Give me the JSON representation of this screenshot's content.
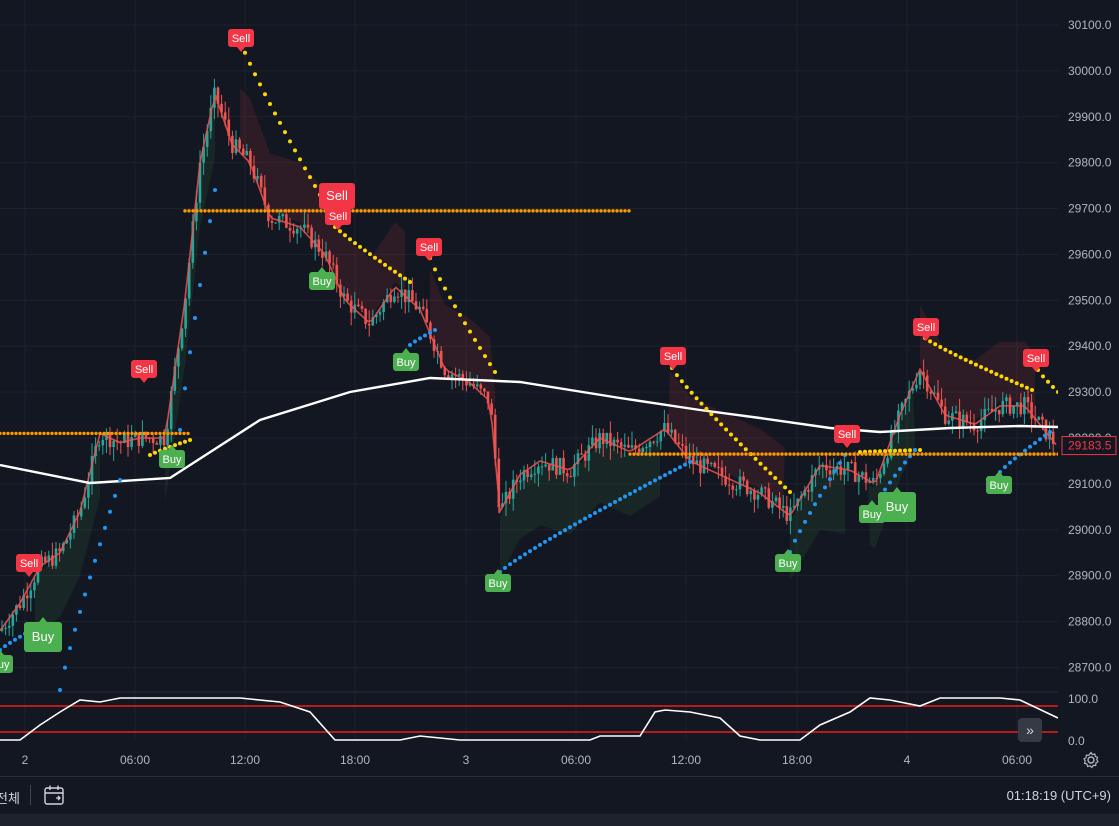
{
  "price_axis": {
    "ticks": [
      "30100.0",
      "30000.0",
      "29900.0",
      "29800.0",
      "29700.0",
      "29600.0",
      "29500.0",
      "29400.0",
      "29300.0",
      "29200.0",
      "29100.0",
      "29000.0",
      "28900.0",
      "28800.0",
      "28700.0"
    ],
    "current_price": "29183.5",
    "current_price_color": "#f23645"
  },
  "oscillator_axis": {
    "ticks": [
      "100.0",
      "0.0"
    ]
  },
  "time_axis": {
    "ticks": [
      "2",
      "06:00",
      "12:00",
      "18:00",
      "3",
      "06:00",
      "12:00",
      "18:00",
      "4",
      "06:00"
    ]
  },
  "signals": {
    "buy_label": "Buy",
    "sell_label": "Sell",
    "buy_color": "#4caf50",
    "sell_color": "#f23645",
    "buy_markers": 10,
    "sell_markers": 10
  },
  "colors": {
    "background": "#131722",
    "grid": "#1e222d",
    "candle_up": "#26a69a",
    "candle_down": "#ef5350",
    "ma_line": "#ffffff",
    "support_dots": "#ff9800",
    "sar_up": "#2196f3",
    "sar_down": "#ffd600",
    "oscillator_bands": "#b71c1c"
  },
  "bottom_bar": {
    "period_label": "전체",
    "clock": "01:18:19 (UTC+9)",
    "calendar_icon": "calendar-icon",
    "settings_icon": "gear-icon",
    "goto_icon": "double-chevron-right-icon"
  },
  "chart_data": {
    "type": "line",
    "title": "",
    "y_range": [
      28650,
      30120
    ],
    "price_levels": {
      "support_1": 29210,
      "support_2": 29695,
      "support_3": 29165
    },
    "ma_line": {
      "x": [
        "2 00:00",
        "2 06:00",
        "2 12:00",
        "2 18:00",
        "3 00:00",
        "3 06:00",
        "3 12:00",
        "3 18:00",
        "4 00:00",
        "4 06:00"
      ],
      "y": [
        29140,
        29100,
        29190,
        29290,
        29330,
        29310,
        29260,
        29230,
        29210,
        29220
      ]
    },
    "oscillator": {
      "range": [
        0,
        100
      ],
      "upper_band": 85,
      "lower_band": 20
    }
  }
}
